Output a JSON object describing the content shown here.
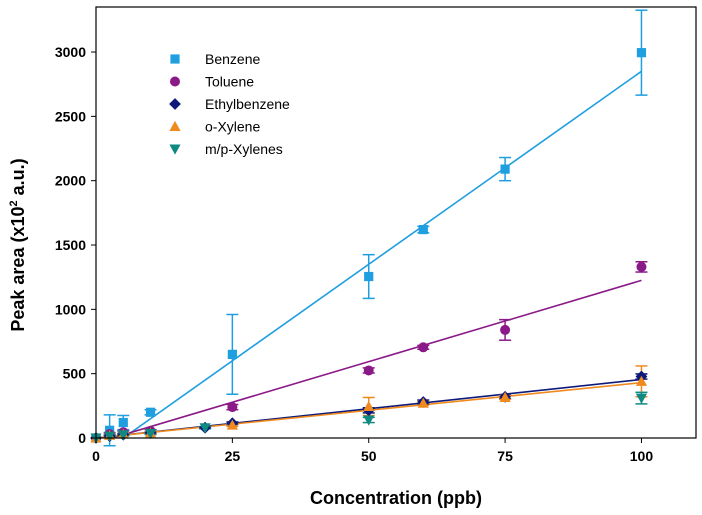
{
  "chart_data": {
    "type": "scatter",
    "title": "",
    "xlabel": "Concentration (ppb)",
    "ylabel_prefix": "Peak area (x10",
    "ylabel_sup": "2",
    "ylabel_suffix": " a.u.)",
    "xlim": [
      0,
      110
    ],
    "ylim": [
      0,
      3350
    ],
    "xticks": [
      0,
      25,
      50,
      75,
      100
    ],
    "yticks": [
      0,
      500,
      1000,
      1500,
      2000,
      2500,
      3000
    ],
    "grid": false,
    "legend_position": "top-left",
    "series": [
      {
        "name": "Benzene",
        "color": "#1f9ee0",
        "marker": "square",
        "points": [
          {
            "x": 0,
            "y": 0,
            "err": 0
          },
          {
            "x": 2.5,
            "y": 60,
            "err": 120
          },
          {
            "x": 5,
            "y": 120,
            "err": 55
          },
          {
            "x": 10,
            "y": 200,
            "err": 20
          },
          {
            "x": 25,
            "y": 650,
            "err": 310
          },
          {
            "x": 50,
            "y": 1255,
            "err": 170
          },
          {
            "x": 60,
            "y": 1620,
            "err": 25
          },
          {
            "x": 75,
            "y": 2090,
            "err": 90
          },
          {
            "x": 100,
            "y": 2995,
            "err": 330
          }
        ],
        "fit": {
          "x": [
            5,
            100
          ],
          "y": [
            0,
            2850
          ]
        }
      },
      {
        "name": "Toluene",
        "color": "#8b1a89",
        "marker": "circle",
        "points": [
          {
            "x": 0,
            "y": 0,
            "err": 0
          },
          {
            "x": 2.5,
            "y": 30,
            "err": 10
          },
          {
            "x": 5,
            "y": 45,
            "err": 10
          },
          {
            "x": 10,
            "y": 55,
            "err": 10
          },
          {
            "x": 25,
            "y": 240,
            "err": 20
          },
          {
            "x": 50,
            "y": 525,
            "err": 20
          },
          {
            "x": 60,
            "y": 705,
            "err": 15
          },
          {
            "x": 75,
            "y": 840,
            "err": 80
          },
          {
            "x": 100,
            "y": 1330,
            "err": 40
          }
        ],
        "fit": {
          "x": [
            3,
            100
          ],
          "y": [
            0,
            1225
          ]
        }
      },
      {
        "name": "Ethylbenzene",
        "color": "#0d1a7a",
        "marker": "diamond",
        "points": [
          {
            "x": 0,
            "y": 0,
            "err": 0
          },
          {
            "x": 2.5,
            "y": 15,
            "err": 8
          },
          {
            "x": 5,
            "y": 25,
            "err": 8
          },
          {
            "x": 10,
            "y": 40,
            "err": 8
          },
          {
            "x": 20,
            "y": 80,
            "err": 8
          },
          {
            "x": 25,
            "y": 115,
            "err": 10
          },
          {
            "x": 50,
            "y": 215,
            "err": 20
          },
          {
            "x": 60,
            "y": 280,
            "err": 15
          },
          {
            "x": 75,
            "y": 320,
            "err": 15
          },
          {
            "x": 100,
            "y": 478,
            "err": 20
          }
        ],
        "fit": {
          "x": [
            0,
            100
          ],
          "y": [
            0,
            455
          ]
        }
      },
      {
        "name": "o-Xylene",
        "color": "#f08a1e",
        "marker": "triangle-up",
        "points": [
          {
            "x": 0,
            "y": 0,
            "err": 0
          },
          {
            "x": 2.5,
            "y": 20,
            "err": 8
          },
          {
            "x": 5,
            "y": 30,
            "err": 8
          },
          {
            "x": 10,
            "y": 40,
            "err": 8
          },
          {
            "x": 25,
            "y": 100,
            "err": 10
          },
          {
            "x": 50,
            "y": 245,
            "err": 70
          },
          {
            "x": 60,
            "y": 270,
            "err": 15
          },
          {
            "x": 75,
            "y": 315,
            "err": 15
          },
          {
            "x": 100,
            "y": 440,
            "err": 120
          }
        ],
        "fit": {
          "x": [
            0,
            100
          ],
          "y": [
            0,
            430
          ]
        }
      },
      {
        "name": "m/p-Xylenes",
        "color": "#0f8a82",
        "marker": "triangle-down",
        "points": [
          {
            "x": 0,
            "y": 0,
            "err": 0
          },
          {
            "x": 2.5,
            "y": 15,
            "err": 8
          },
          {
            "x": 5,
            "y": 25,
            "err": 8
          },
          {
            "x": 10,
            "y": 35,
            "err": 8
          },
          {
            "x": 20,
            "y": 80,
            "err": 8
          },
          {
            "x": 50,
            "y": 140,
            "err": 20
          },
          {
            "x": 100,
            "y": 310,
            "err": 45
          }
        ],
        "fit": null
      }
    ]
  }
}
